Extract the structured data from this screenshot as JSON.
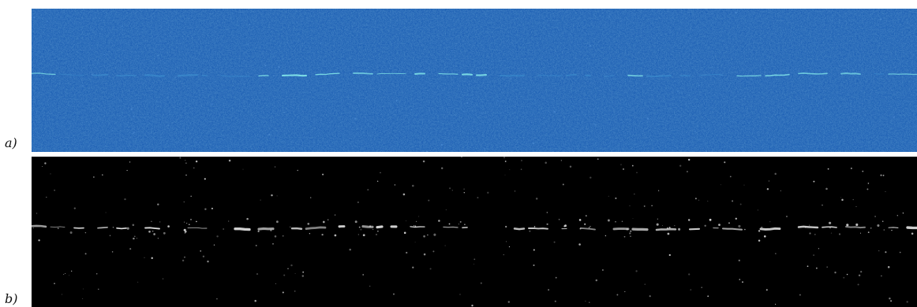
{
  "panels": [
    {
      "label": "a)",
      "description_icon": "surface-texture-image",
      "colors": {
        "background": "#1c5fb3",
        "noise_light": "#4f8fd6",
        "noise_dark": "#144a93",
        "crack": "#7fe3e8"
      }
    },
    {
      "label": "b)",
      "description_icon": "binary-mask-image",
      "colors": {
        "background": "#000000",
        "crack": "#e6e6e6"
      }
    }
  ]
}
